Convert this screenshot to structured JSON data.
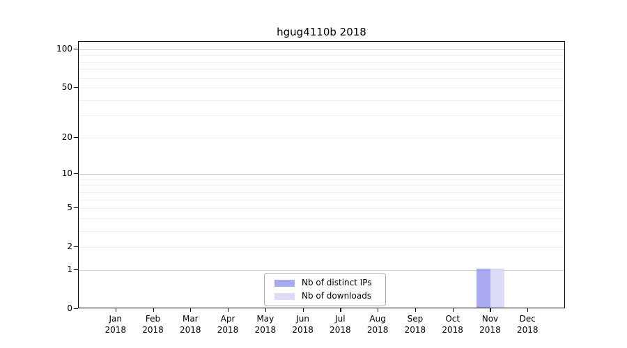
{
  "title": "hgug4110b 2018",
  "chart_data": {
    "type": "bar",
    "title": "hgug4110b 2018",
    "categories": [
      "Jan 2018",
      "Feb 2018",
      "Mar 2018",
      "Apr 2018",
      "May 2018",
      "Jun 2018",
      "Jul 2018",
      "Aug 2018",
      "Sep 2018",
      "Oct 2018",
      "Nov 2018",
      "Dec 2018"
    ],
    "series": [
      {
        "name": "Nb of distinct IPs",
        "color": "#a9a9f0",
        "values": [
          0,
          0,
          0,
          0,
          0,
          0,
          0,
          0,
          0,
          0,
          1,
          0
        ]
      },
      {
        "name": "Nb of downloads",
        "color": "#dcdcf8",
        "values": [
          0,
          0,
          0,
          0,
          0,
          0,
          0,
          0,
          0,
          0,
          1,
          0
        ]
      }
    ],
    "xlabel": "",
    "ylabel": "",
    "yscale": "log1p",
    "ylim": [
      0,
      100
    ],
    "yticks_labeled": [
      0,
      1,
      2,
      5,
      10,
      20,
      50,
      100
    ],
    "major_gridlines": [
      1,
      10,
      100
    ],
    "minor_gridlines": [
      2,
      3,
      4,
      5,
      6,
      7,
      8,
      9,
      20,
      30,
      40,
      50,
      60,
      70,
      80,
      90
    ],
    "grid": "horizontal",
    "legend_position": "lower center",
    "colors": {
      "axis": "#000000",
      "major_grid": "#d2d2d2",
      "minor_grid": "#f0f0f0",
      "text": "#000000",
      "background": "#ffffff"
    }
  }
}
